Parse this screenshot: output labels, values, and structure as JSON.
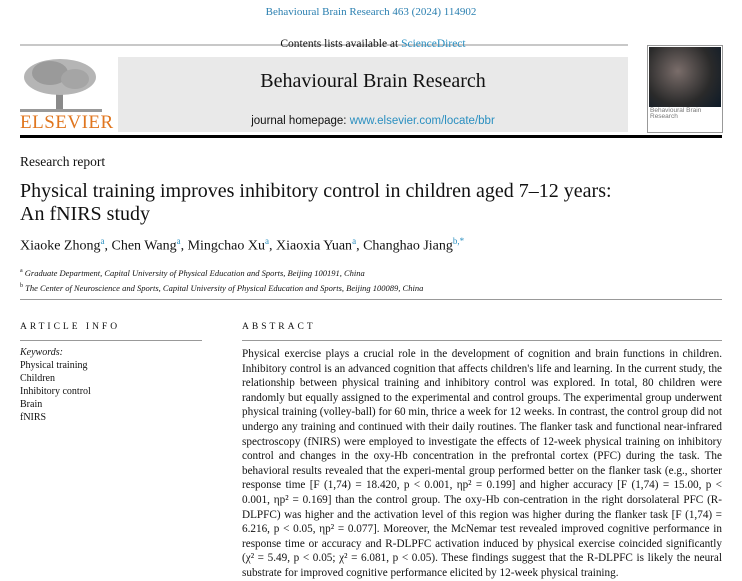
{
  "header": {
    "citation": "Behavioural Brain Research 463 (2024) 114902",
    "contents_prefix": "Contents lists available at ",
    "contents_link": "ScienceDirect",
    "journal_title": "Behavioural Brain Research",
    "homepage_prefix": "journal homepage: ",
    "homepage_link": "www.elsevier.com/locate/bbr",
    "publisher_logo": "ELSEVIER",
    "cover_title": "Behavioural Brain Research"
  },
  "article": {
    "type": "Research report",
    "title_line1": "Physical training improves inhibitory control in children aged 7–12 years:",
    "title_line2": "An fNIRS study",
    "authors": [
      {
        "name": "Xiaoke Zhong",
        "aff": "a"
      },
      {
        "name": "Chen Wang",
        "aff": "a"
      },
      {
        "name": "Mingchao Xu",
        "aff": "a"
      },
      {
        "name": "Xiaoxia Yuan",
        "aff": "a"
      },
      {
        "name": "Changhao Jiang",
        "aff": "b,*"
      }
    ],
    "affiliations": [
      {
        "mark": "a",
        "text": "Graduate Department, Capital University of Physical Education and Sports, Beijing 100191, China"
      },
      {
        "mark": "b",
        "text": "The Center of Neuroscience and Sports, Capital University of Physical Education and Sports, Beijing 100089, China"
      }
    ]
  },
  "article_info": {
    "heading": "ARTICLE INFO",
    "keywords_label": "Keywords:",
    "keywords": [
      "Physical training",
      "Children",
      "Inhibitory control",
      "Brain",
      "fNIRS"
    ]
  },
  "abstract": {
    "heading": "ABSTRACT",
    "text": "Physical exercise plays a crucial role in the development of cognition and brain functions in children. Inhibitory control is an advanced cognition that affects children's life and learning. In the current study, the relationship between physical training and inhibitory control was explored. In total, 80 children were randomly but equally assigned to the experimental and control groups. The experimental group underwent physical training (volley-ball) for 60 min, thrice a week for 12 weeks. In contrast, the control group did not undergo any training and continued with their daily routines. The flanker task and functional near-infrared spectroscopy (fNIRS) were employed to investigate the effects of 12-week physical training on inhibitory control and changes in the oxy-Hb concentration in the prefrontal cortex (PFC) during the task. The behavioral results revealed that the experi-mental group performed better on the flanker task (e.g., shorter response time [F (1,74) = 18.420, p < 0.001, ηp² = 0.199] and higher accuracy [F (1,74) = 15.00, p < 0.001, ηp² = 0.169] than the control group. The oxy-Hb con-centration in the right dorsolateral PFC (R-DLPFC) was higher and the activation level of this region was higher during the flanker task [F (1,74) = 6.216, p < 0.05, ηp² = 0.077]. Moreover, the McNemar test revealed improved cognitive performance in response time or accuracy and R-DLPFC activation induced by physical exercise coincided significantly (χ² = 5.49, p < 0.05; χ² = 6.081, p < 0.05). These findings suggest that the R-DLPFC is likely the neural substrate for improved cognitive performance elicited by 12-week physical training."
  },
  "colors": {
    "link": "#2a8fc0",
    "elsevier_orange": "#e0761f",
    "header_box": "#e9e9e9"
  }
}
